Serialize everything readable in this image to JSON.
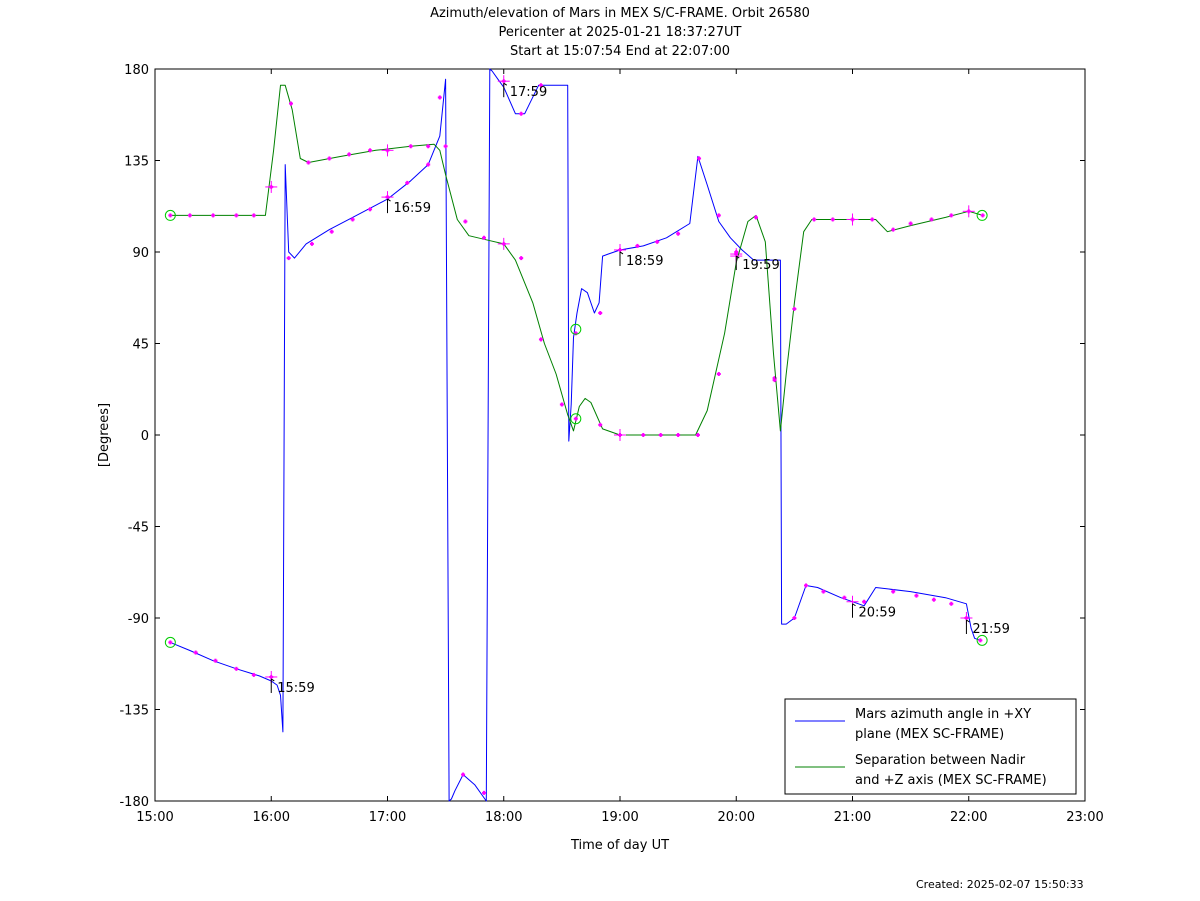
{
  "chart_data": {
    "type": "line",
    "title": [
      "Azimuth/elevation of Mars in MEX S/C-FRAME.  Orbit 26580",
      "Pericenter at 2025-01-21 18:37:27UT",
      "Start at 15:07:54 End at 22:07:00"
    ],
    "xlabel": "Time of day UT",
    "ylabel": "[Degrees]",
    "xlim": [
      15.0,
      23.0
    ],
    "ylim": [
      -180,
      180
    ],
    "xticks": [
      {
        "v": 15,
        "label": "15:00"
      },
      {
        "v": 16,
        "label": "16:00"
      },
      {
        "v": 17,
        "label": "17:00"
      },
      {
        "v": 18,
        "label": "18:00"
      },
      {
        "v": 19,
        "label": "19:00"
      },
      {
        "v": 20,
        "label": "20:00"
      },
      {
        "v": 21,
        "label": "21:00"
      },
      {
        "v": 22,
        "label": "22:00"
      },
      {
        "v": 23,
        "label": "23:00"
      }
    ],
    "yticks": [
      {
        "v": 180,
        "label": "180"
      },
      {
        "v": 135,
        "label": "135"
      },
      {
        "v": 90,
        "label": "90"
      },
      {
        "v": 45,
        "label": "45"
      },
      {
        "v": 0,
        "label": "0"
      },
      {
        "v": -45,
        "label": "-45"
      },
      {
        "v": -90,
        "label": "-90"
      },
      {
        "v": -135,
        "label": "-135"
      },
      {
        "v": -180,
        "label": "-180"
      }
    ],
    "legend_position": "bottom-right",
    "series": [
      {
        "name": "Mars azimuth angle in +XY plane (MEX SC-FRAME)",
        "legend_lines": [
          "Mars azimuth angle in +XY",
          "plane (MEX SC-FRAME)"
        ],
        "color": "#0000ff",
        "x": [
          15.132,
          15.3,
          15.5,
          15.7,
          15.9,
          16.0,
          16.05,
          16.08,
          16.1,
          16.12,
          16.15,
          16.2,
          16.3,
          16.5,
          16.7,
          16.9,
          17.0,
          17.2,
          17.35,
          17.45,
          17.5,
          17.53,
          17.55,
          17.58,
          17.65,
          17.75,
          17.85,
          17.88,
          17.9,
          17.95,
          18.0,
          18.1,
          18.18,
          18.3,
          18.4,
          18.55,
          18.56,
          18.58,
          18.6,
          18.63,
          18.67,
          18.72,
          18.78,
          18.82,
          18.85,
          18.9,
          19.0,
          19.2,
          19.4,
          19.6,
          19.67,
          19.75,
          19.85,
          19.95,
          20.05,
          20.15,
          20.25,
          20.38,
          20.39,
          20.4,
          20.43,
          20.5,
          20.6,
          20.7,
          20.9,
          21.0,
          21.1,
          21.2,
          21.5,
          21.8,
          21.98,
          22.02,
          22.05,
          22.1
        ],
        "y": [
          -102,
          -106,
          -111,
          -115,
          -118.5,
          -121,
          -123,
          -128,
          -146,
          133,
          90,
          87,
          94,
          101,
          107,
          113,
          116,
          125,
          133,
          147,
          175,
          -180,
          -179,
          -175,
          -167,
          -172,
          -180,
          180,
          179,
          175,
          171,
          158,
          158,
          172,
          172,
          172,
          -3,
          15,
          48,
          60,
          72,
          70,
          60,
          65,
          88,
          89,
          91,
          93,
          97,
          104,
          137,
          123,
          105,
          97,
          91,
          86,
          86,
          86,
          -93,
          -93,
          -93,
          -90,
          -74,
          -75,
          -80,
          -82,
          -84,
          -75,
          -77,
          -80,
          -83,
          -95,
          -100,
          -101
        ],
        "markers": [
          [
            15.132,
            -102
          ],
          [
            15.35,
            -107
          ],
          [
            15.52,
            -111
          ],
          [
            15.7,
            -115
          ],
          [
            15.85,
            -118
          ],
          [
            16.0,
            -119
          ],
          [
            16.15,
            87
          ],
          [
            16.35,
            94
          ],
          [
            16.52,
            100
          ],
          [
            16.7,
            106
          ],
          [
            16.85,
            111
          ],
          [
            17.0,
            117
          ],
          [
            17.17,
            124
          ],
          [
            17.35,
            133
          ],
          [
            17.45,
            166
          ],
          [
            17.65,
            -167
          ],
          [
            17.83,
            -176
          ],
          [
            18.0,
            174
          ],
          [
            18.15,
            158
          ],
          [
            18.32,
            172
          ],
          [
            18.62,
            50
          ],
          [
            18.83,
            60
          ],
          [
            19.0,
            91
          ],
          [
            19.15,
            93
          ],
          [
            19.32,
            95
          ],
          [
            19.5,
            99
          ],
          [
            19.68,
            136
          ],
          [
            19.85,
            108
          ],
          [
            20.0,
            89
          ],
          [
            20.33,
            28
          ],
          [
            20.5,
            -90
          ],
          [
            20.6,
            -74
          ],
          [
            20.75,
            -77
          ],
          [
            20.93,
            -80
          ],
          [
            21.1,
            -82
          ],
          [
            21.35,
            -77
          ],
          [
            21.55,
            -79
          ],
          [
            21.7,
            -81
          ],
          [
            21.85,
            -83
          ],
          [
            21.98,
            -90
          ],
          [
            22.1,
            -101
          ]
        ],
        "crosses": [
          [
            16.0,
            -119
          ],
          [
            17.0,
            117
          ],
          [
            18.0,
            174
          ],
          [
            19.0,
            91
          ],
          [
            20.0,
            89
          ],
          [
            21.0,
            -82
          ],
          [
            21.98,
            -90
          ]
        ],
        "circles": [
          [
            15.132,
            -102
          ],
          [
            18.62,
            52
          ],
          [
            22.115,
            -101
          ]
        ]
      },
      {
        "name": "Separation between Nadir and +Z axis (MEX SC-FRAME)",
        "legend_lines": [
          "Separation between Nadir",
          "and +Z axis (MEX SC-FRAME)"
        ],
        "color": "#008000",
        "x": [
          15.132,
          15.5,
          15.95,
          16.02,
          16.08,
          16.12,
          16.18,
          16.25,
          16.32,
          16.6,
          16.9,
          17.2,
          17.4,
          17.45,
          17.5,
          17.6,
          17.7,
          17.85,
          18.0,
          18.1,
          18.25,
          18.35,
          18.45,
          18.55,
          18.6,
          18.65,
          18.7,
          18.75,
          18.85,
          19.0,
          19.5,
          19.65,
          19.75,
          19.9,
          20.0,
          20.1,
          20.17,
          20.25,
          20.32,
          20.38,
          20.43,
          20.5,
          20.58,
          20.65,
          20.8,
          21.0,
          21.15,
          21.2,
          21.3,
          21.5,
          21.8,
          22.0,
          22.12
        ],
        "y": [
          108,
          108,
          108,
          140,
          172,
          172,
          160,
          136,
          134,
          137,
          140,
          142,
          143,
          140,
          128,
          106,
          98,
          96,
          94,
          86,
          65,
          45,
          30,
          10,
          2,
          14,
          18,
          16,
          3,
          0,
          0,
          0,
          12,
          50,
          85,
          105,
          108,
          95,
          40,
          2,
          30,
          65,
          100,
          106,
          106,
          106,
          106,
          106,
          100,
          103,
          107,
          110,
          108
        ],
        "markers": [
          [
            15.132,
            108
          ],
          [
            15.3,
            108
          ],
          [
            15.5,
            108
          ],
          [
            15.7,
            108
          ],
          [
            15.85,
            108
          ],
          [
            16.0,
            122
          ],
          [
            16.17,
            163
          ],
          [
            16.32,
            134
          ],
          [
            16.5,
            136
          ],
          [
            16.67,
            138
          ],
          [
            16.85,
            140
          ],
          [
            17.0,
            140
          ],
          [
            17.2,
            142
          ],
          [
            17.35,
            142
          ],
          [
            17.5,
            142
          ],
          [
            17.67,
            105
          ],
          [
            17.83,
            97
          ],
          [
            18.0,
            94
          ],
          [
            18.15,
            87
          ],
          [
            18.32,
            47
          ],
          [
            18.5,
            15
          ],
          [
            18.62,
            8
          ],
          [
            18.83,
            5
          ],
          [
            19.0,
            0
          ],
          [
            19.2,
            0
          ],
          [
            19.35,
            0
          ],
          [
            19.5,
            0
          ],
          [
            19.67,
            0
          ],
          [
            19.85,
            30
          ],
          [
            20.0,
            90
          ],
          [
            20.17,
            107
          ],
          [
            20.33,
            27
          ],
          [
            20.5,
            62
          ],
          [
            20.67,
            106
          ],
          [
            20.83,
            106
          ],
          [
            21.0,
            106
          ],
          [
            21.17,
            106
          ],
          [
            21.35,
            101
          ],
          [
            21.5,
            104
          ],
          [
            21.68,
            106
          ],
          [
            21.85,
            108
          ],
          [
            22.0,
            110
          ],
          [
            22.12,
            108
          ]
        ],
        "crosses": [
          [
            16.0,
            122
          ],
          [
            17.0,
            140
          ],
          [
            18.0,
            94
          ],
          [
            19.0,
            0
          ],
          [
            20.0,
            88
          ],
          [
            21.0,
            106
          ],
          [
            22.0,
            110
          ]
        ],
        "circles": [
          [
            15.132,
            108
          ],
          [
            18.62,
            8
          ],
          [
            22.115,
            108
          ]
        ]
      }
    ],
    "annotations": [
      {
        "x": 16.0,
        "y": -119,
        "text": "15:59"
      },
      {
        "x": 17.0,
        "y": 117,
        "text": "16:59"
      },
      {
        "x": 18.0,
        "y": 174,
        "text": "17:59"
      },
      {
        "x": 19.0,
        "y": 91,
        "text": "18:59"
      },
      {
        "x": 20.0,
        "y": 89,
        "text": "19:59"
      },
      {
        "x": 21.0,
        "y": -82,
        "text": "20:59"
      },
      {
        "x": 21.98,
        "y": -90,
        "text": "21:59"
      }
    ]
  },
  "footer": {
    "created": "Created: 2025-02-07 15:50:33"
  }
}
